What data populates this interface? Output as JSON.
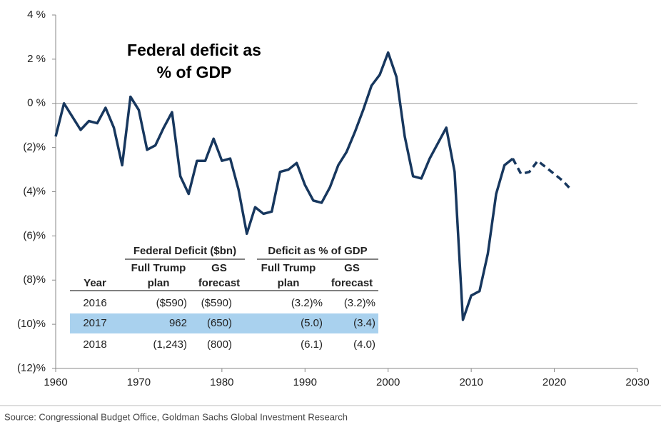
{
  "chart_data": {
    "type": "line",
    "title_lines": [
      "Federal deficit as",
      "% of GDP"
    ],
    "x": [
      1960,
      1961,
      1962,
      1963,
      1964,
      1965,
      1966,
      1967,
      1968,
      1969,
      1970,
      1971,
      1972,
      1973,
      1974,
      1975,
      1976,
      1977,
      1978,
      1979,
      1980,
      1981,
      1982,
      1983,
      1984,
      1985,
      1986,
      1987,
      1988,
      1989,
      1990,
      1991,
      1992,
      1993,
      1994,
      1995,
      1996,
      1997,
      1998,
      1999,
      2000,
      2001,
      2002,
      2003,
      2004,
      2005,
      2006,
      2007,
      2008,
      2009,
      2010,
      2011,
      2012,
      2013,
      2014,
      2015,
      2016,
      2017,
      2018,
      2019,
      2020,
      2021,
      2022
    ],
    "series": [
      {
        "color": "#17375e",
        "dashed": false,
        "values": [
          -1.5,
          0.0,
          -0.6,
          -1.2,
          -0.8,
          -0.9,
          -0.2,
          -1.1,
          -2.8,
          0.3,
          -0.3,
          -2.1,
          -1.9,
          -1.1,
          -0.4,
          -3.3,
          -4.1,
          -2.6,
          -2.6,
          -1.6,
          -2.6,
          -2.5,
          -3.9,
          -5.9,
          -4.7,
          -5.0,
          -4.9,
          -3.1,
          -3.0,
          -2.7,
          -3.7,
          -4.4,
          -4.5,
          -3.8,
          -2.8,
          -2.2,
          -1.3,
          -0.3,
          0.8,
          1.3,
          2.3,
          1.2,
          -1.5,
          -3.3,
          -3.4,
          -2.5,
          -1.8,
          -1.1,
          -3.1,
          -9.8,
          -8.7,
          -8.5,
          -6.8,
          -4.1,
          -2.8,
          -2.5,
          null,
          null,
          null,
          null,
          null,
          null,
          null
        ]
      },
      {
        "color": "#17375e",
        "dashed": true,
        "values": [
          null,
          null,
          null,
          null,
          null,
          null,
          null,
          null,
          null,
          null,
          null,
          null,
          null,
          null,
          null,
          null,
          null,
          null,
          null,
          null,
          null,
          null,
          null,
          null,
          null,
          null,
          null,
          null,
          null,
          null,
          null,
          null,
          null,
          null,
          null,
          null,
          null,
          null,
          null,
          null,
          null,
          null,
          null,
          null,
          null,
          null,
          null,
          null,
          null,
          null,
          null,
          null,
          null,
          null,
          null,
          -2.5,
          -3.2,
          -3.1,
          -2.6,
          -2.9,
          -3.2,
          -3.5,
          -3.9
        ]
      }
    ],
    "xlim": [
      1960,
      2030
    ],
    "xticks": [
      1960,
      1970,
      1980,
      1990,
      2000,
      2010,
      2020,
      2030
    ],
    "ylim": [
      -12,
      4
    ],
    "yticks": [
      {
        "value": 4,
        "label": "4 %"
      },
      {
        "value": 2,
        "label": "2 %"
      },
      {
        "value": 0,
        "label": "0 %"
      },
      {
        "value": -2,
        "label": "(2)%"
      },
      {
        "value": -4,
        "label": "(4)%"
      },
      {
        "value": -6,
        "label": "(6)%"
      },
      {
        "value": -8,
        "label": "(8)%"
      },
      {
        "value": -10,
        "label": "(10)%"
      },
      {
        "value": -12,
        "label": "(12)%"
      }
    ],
    "zero_line": true
  },
  "table": {
    "groups": [
      "Federal Deficit ($bn)",
      "Deficit as % of GDP"
    ],
    "columns": [
      [
        "Year"
      ],
      [
        "Full Trump",
        "plan"
      ],
      [
        "GS",
        "forecast"
      ],
      [
        "Full Trump",
        "plan"
      ],
      [
        "GS",
        "forecast"
      ]
    ],
    "rows": [
      [
        "2016",
        "($590)",
        "($590)",
        "(3.2)%",
        "(3.2)%"
      ],
      [
        "2017",
        "962",
        "(650)",
        "(5.0)",
        "(3.4)"
      ],
      [
        "2018",
        "(1,243)",
        "(800)",
        "(6.1)",
        "(4.0)"
      ]
    ],
    "highlight_row": 1
  },
  "source": "Source: Congressional Budget Office, Goldman Sachs Global Investment Research"
}
